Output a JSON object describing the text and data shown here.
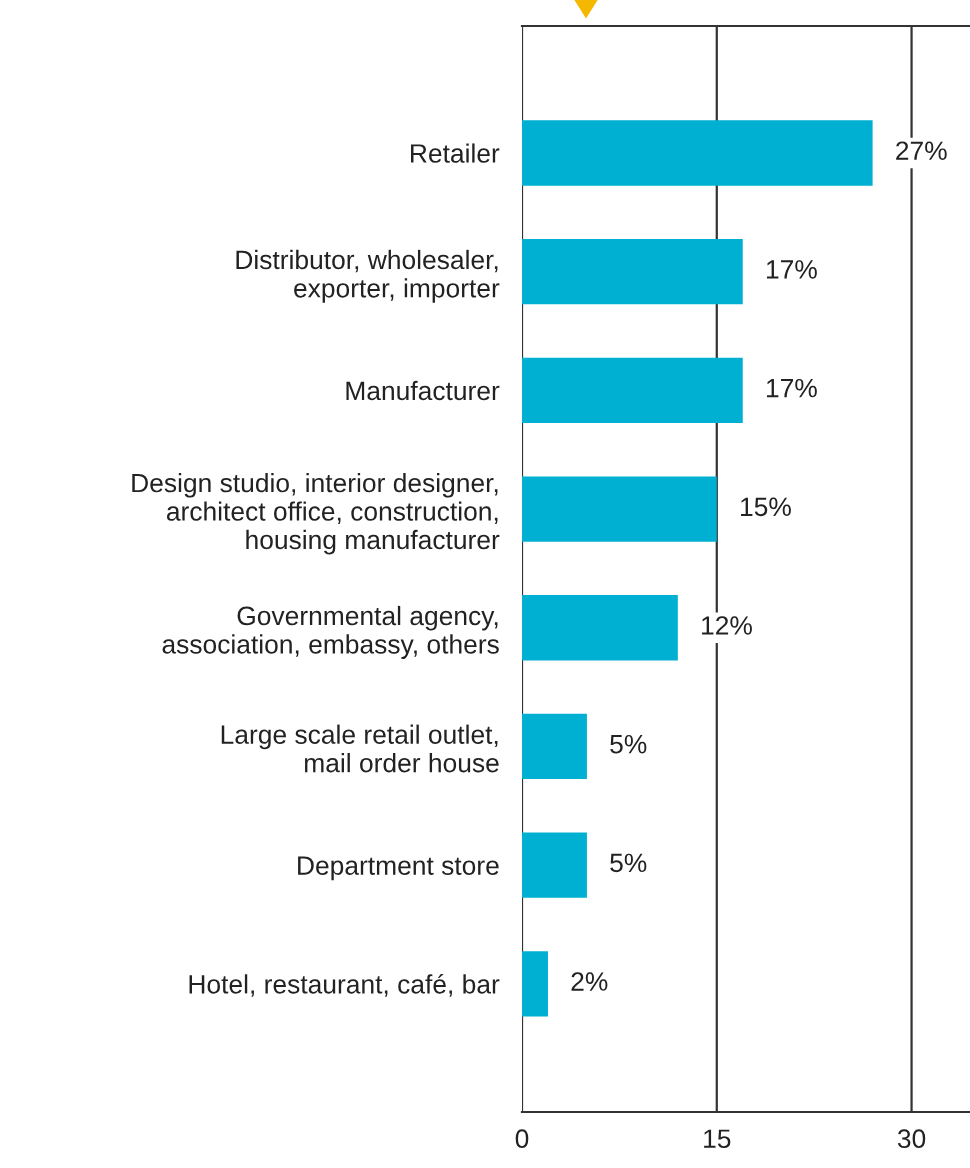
{
  "chart_data": {
    "type": "bar",
    "orientation": "horizontal",
    "categories": [
      "Retailer",
      "Distributor, wholesaler,\nexporter, importer",
      "Manufacturer",
      "Design studio, interior designer,\narchitect office, construction,\nhousing manufacturer",
      "Governmental agency,\nassociation, embassy, others",
      "Large scale retail outlet,\nmail order house",
      "Department store",
      "Hotel, restaurant, café, bar"
    ],
    "values": [
      27,
      17,
      17,
      15,
      12,
      5,
      5,
      2
    ],
    "value_labels": [
      "27%",
      "17%",
      "17%",
      "15%",
      "12%",
      "5%",
      "5%",
      "2%"
    ],
    "color": "#00b0d2",
    "xlim": [
      0,
      34.5
    ],
    "xticks": [
      0,
      15,
      30
    ],
    "grid": "x"
  }
}
